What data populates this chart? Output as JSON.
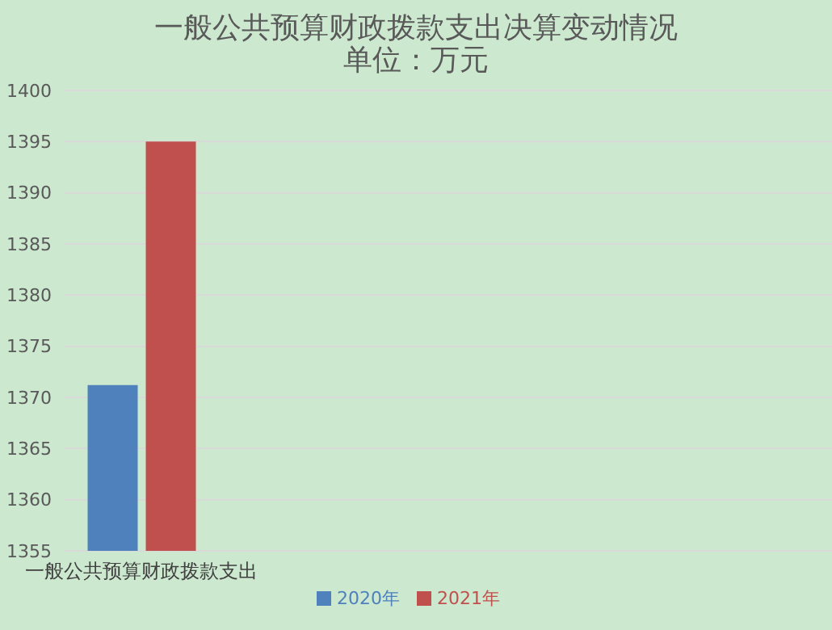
{
  "chart_data": {
    "type": "bar",
    "title": "一般公共预算财政拨款支出决算变动情况",
    "subtitle": "单位：万元",
    "categories": [
      "一般公共预算财政拨款支出",
      null,
      null,
      null,
      null
    ],
    "series": [
      {
        "name": "2020年",
        "color": "#4f81bd",
        "values": [
          1371.2,
          null,
          null,
          null,
          null
        ]
      },
      {
        "name": "2021年",
        "color": "#c0504d",
        "values": [
          1395,
          null,
          null,
          null,
          null
        ]
      }
    ],
    "ylim": [
      1355,
      1400
    ],
    "yticks": [
      1355,
      1360,
      1365,
      1370,
      1375,
      1380,
      1385,
      1390,
      1395,
      1400
    ],
    "grid": "y",
    "legend": "bottom"
  }
}
